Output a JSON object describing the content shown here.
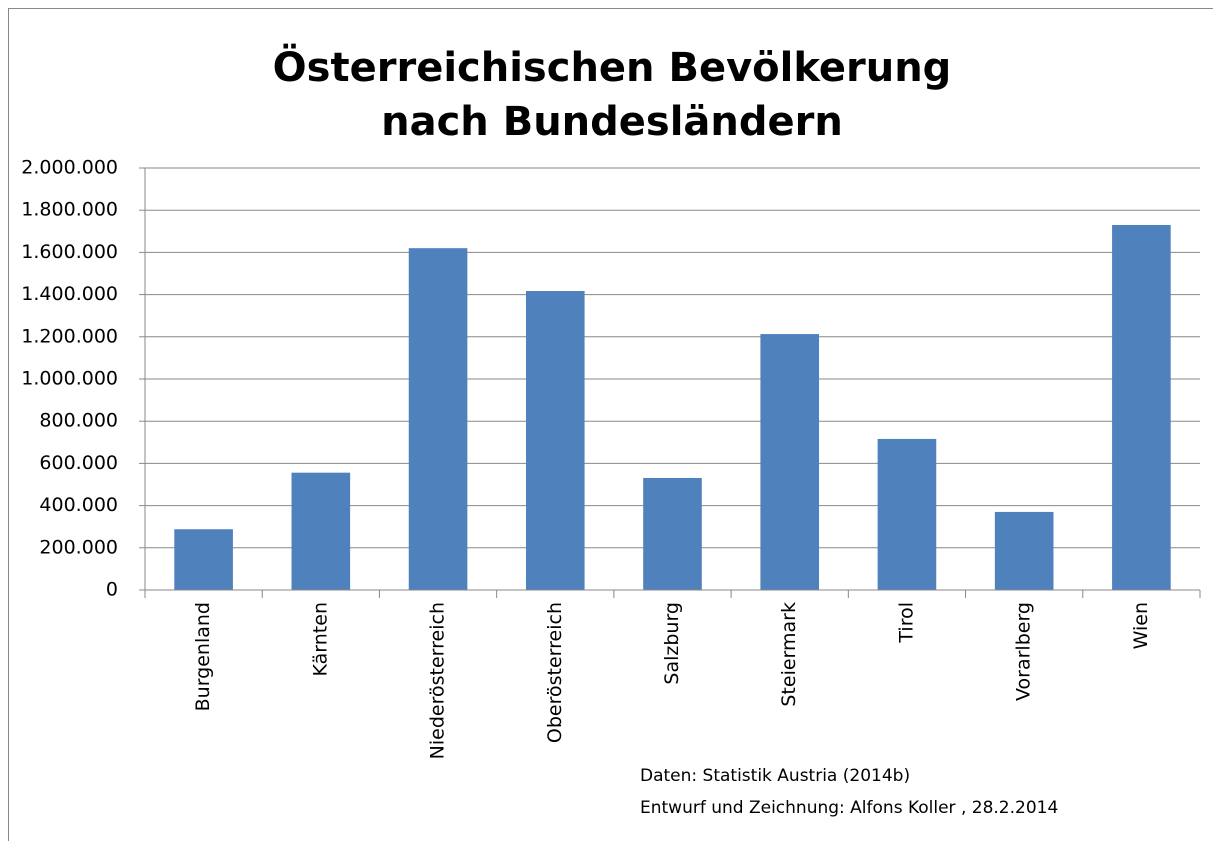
{
  "chart_data": {
    "type": "bar",
    "title": [
      "Österreichischen Bevölkerung",
      "nach Bundesländern"
    ],
    "categories": [
      "Burgenland",
      "Kärnten",
      "Niederösterreich",
      "Oberösterreich",
      "Salzburg",
      "Steiermark",
      "Tirol",
      "Vorarlberg",
      "Wien"
    ],
    "values": [
      288000,
      556000,
      1620000,
      1417000,
      531000,
      1213000,
      716000,
      370000,
      1730000
    ],
    "color": "#4f81bd",
    "ylim": [
      0,
      2000000
    ],
    "yticks": [
      0,
      {
        "value": 200000,
        "label": "200.000"
      },
      {
        "value": 400000,
        "label": "400.000"
      },
      {
        "value": 600000,
        "label": "600.000"
      },
      {
        "value": 800000,
        "label": "800.000"
      },
      {
        "value": 1000000,
        "label": "1.000.000"
      },
      {
        "value": 1200000,
        "label": "1.200.000"
      },
      {
        "value": 1400000,
        "label": "1.400.000"
      },
      {
        "value": 1600000,
        "label": "1.600.000"
      },
      {
        "value": 1800000,
        "label": "1.800.000"
      },
      {
        "value": 2000000,
        "label": "2.000.000"
      }
    ],
    "grid": true,
    "annotations": [
      "Daten: Statistik Austria (2014b)",
      "Entwurf und Zeichnung: Alfons Koller , 28.2.2014"
    ]
  }
}
